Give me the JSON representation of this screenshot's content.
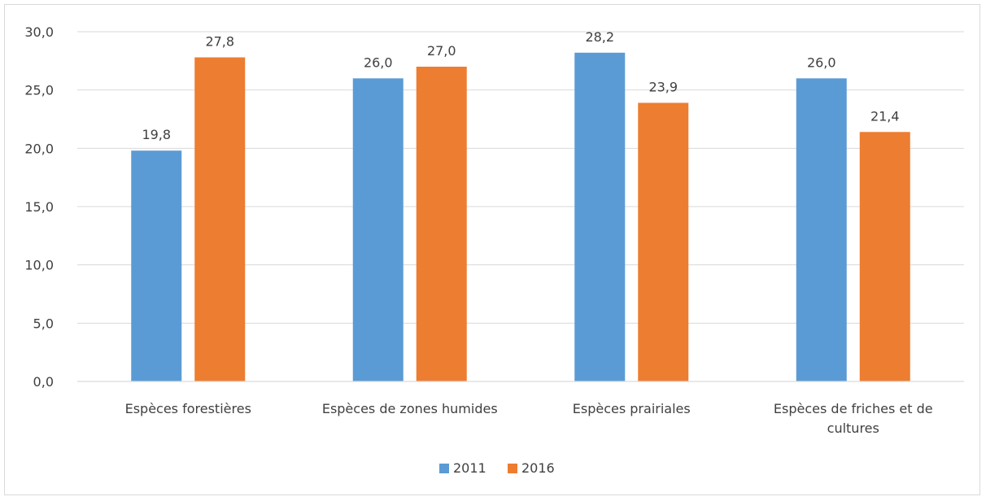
{
  "chart_data": {
    "type": "bar",
    "categories": [
      [
        "Espèces forestières"
      ],
      [
        "Espèces de zones humides"
      ],
      [
        "Espèces prairiales"
      ],
      [
        "Espèces de friches et de",
        "cultures"
      ]
    ],
    "series": [
      {
        "name": "2011",
        "color": "#5b9bd5",
        "values": [
          19.8,
          26.0,
          28.2,
          26.0
        ],
        "labels": [
          "19,8",
          "26,0",
          "28,2",
          "26,0"
        ]
      },
      {
        "name": "2016",
        "color": "#ed7d31",
        "values": [
          27.8,
          27.0,
          23.9,
          21.4
        ],
        "labels": [
          "27,8",
          "27,0",
          "23,9",
          "21,4"
        ]
      }
    ],
    "ylim": [
      0,
      30
    ],
    "yticks": [
      0,
      5,
      10,
      15,
      20,
      25,
      30
    ],
    "ytick_labels": [
      "0,0",
      "5,0",
      "10,0",
      "15,0",
      "20,0",
      "25,0",
      "30,0"
    ],
    "grid": true,
    "legend": "bottom"
  }
}
